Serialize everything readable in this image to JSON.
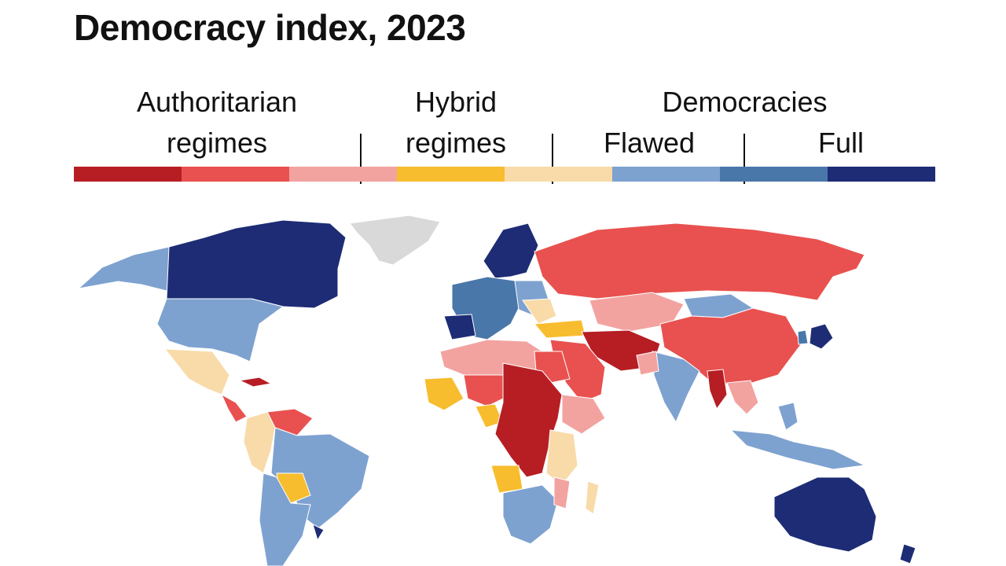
{
  "title": "Democracy index, 2023",
  "legend": {
    "groups": {
      "authoritarian": "Authoritarian\nregimes",
      "hybrid": "Hybrid\nregimes",
      "democracies": "Democracies",
      "flawed": "Flawed",
      "full": "Full"
    },
    "scale_colors": [
      "#b61e24",
      "#e8514f",
      "#f2a3a0",
      "#f7bd2e",
      "#f8dba9",
      "#7ea2d0",
      "#4a77aa",
      "#1d2c74"
    ]
  },
  "map": {
    "no_data_color": "#d9d9d9"
  }
}
